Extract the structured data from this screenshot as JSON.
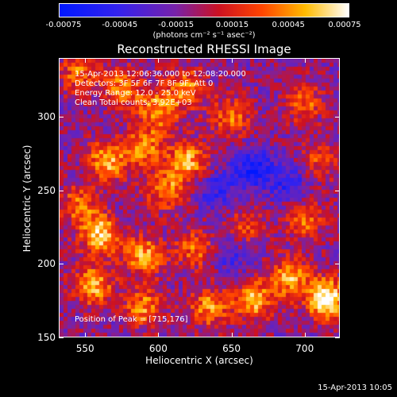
{
  "colorbar": {
    "ticks": [
      "-0.00075",
      "-0.00045",
      "-0.00015",
      "0.00015",
      "0.00045",
      "0.00075"
    ],
    "range": [
      -0.00075,
      0.00075
    ],
    "unit_label": "(photons cm⁻² s⁻¹ asec⁻²)"
  },
  "chart_data": {
    "type": "heatmap",
    "title": "Reconstructed RHESSI Image",
    "xlabel": "Heliocentric X (arcsec)",
    "ylabel": "Heliocentric Y (arcsec)",
    "xlim": [
      532,
      724
    ],
    "ylim": [
      150,
      340
    ],
    "x_ticks": [
      550,
      600,
      650,
      700
    ],
    "y_ticks": [
      150,
      200,
      250,
      300
    ],
    "annotations": [
      "15-Apr-2013 12:06:36.000 to 12:08:20.000",
      "Detectors: 3F 5F 6F 7F 8F 9F, Att 0",
      "Energy Range: 12.0 - 25.0 keV",
      "Clean     Total counts: 3.92E+03"
    ],
    "peak_label": "Position of Peak = [715,176]",
    "peak": [
      715,
      176
    ],
    "colormap": "blue-purple-red-yellow-white",
    "hot_spots": [
      {
        "x": 545,
        "y": 330,
        "v": 0.6
      },
      {
        "x": 575,
        "y": 320,
        "v": 0.7
      },
      {
        "x": 600,
        "y": 305,
        "v": 0.8
      },
      {
        "x": 620,
        "y": 320,
        "v": 0.7
      },
      {
        "x": 650,
        "y": 300,
        "v": 0.6
      },
      {
        "x": 700,
        "y": 310,
        "v": 0.6
      },
      {
        "x": 565,
        "y": 270,
        "v": 0.9
      },
      {
        "x": 590,
        "y": 280,
        "v": 0.7
      },
      {
        "x": 620,
        "y": 270,
        "v": 0.85
      },
      {
        "x": 605,
        "y": 250,
        "v": 0.7
      },
      {
        "x": 560,
        "y": 220,
        "v": 1.0
      },
      {
        "x": 545,
        "y": 240,
        "v": 0.6
      },
      {
        "x": 590,
        "y": 205,
        "v": 0.85
      },
      {
        "x": 625,
        "y": 210,
        "v": 0.6
      },
      {
        "x": 555,
        "y": 185,
        "v": 0.85
      },
      {
        "x": 590,
        "y": 170,
        "v": 0.7
      },
      {
        "x": 635,
        "y": 170,
        "v": 0.75
      },
      {
        "x": 665,
        "y": 175,
        "v": 0.85
      },
      {
        "x": 690,
        "y": 190,
        "v": 0.8
      },
      {
        "x": 715,
        "y": 176,
        "v": 1.25
      },
      {
        "x": 700,
        "y": 230,
        "v": 0.6
      },
      {
        "x": 710,
        "y": 270,
        "v": 0.5
      },
      {
        "x": 660,
        "y": 225,
        "v": 0.45
      }
    ],
    "cold_spots": [
      {
        "x": 665,
        "y": 265,
        "v": -0.7
      },
      {
        "x": 640,
        "y": 250,
        "v": -0.45
      },
      {
        "x": 690,
        "y": 255,
        "v": -0.5
      },
      {
        "x": 650,
        "y": 205,
        "v": -0.35
      }
    ]
  },
  "timestamp": "15-Apr-2013 10:05"
}
